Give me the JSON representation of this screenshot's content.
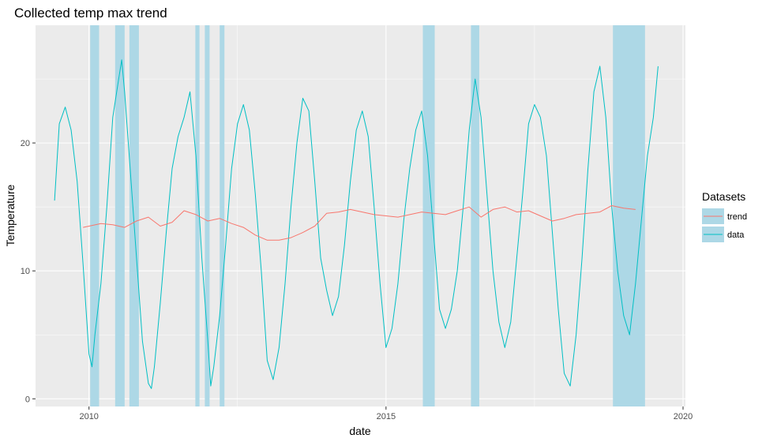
{
  "chart_data": {
    "type": "line",
    "title": "Collected temp max trend",
    "xlabel": "date",
    "ylabel": "Temperature",
    "x_ticks": [
      2010,
      2015,
      2020
    ],
    "y_ticks": [
      0,
      10,
      20
    ],
    "xlim": [
      2009.1,
      2020.04
    ],
    "ylim": [
      -0.6,
      29.2
    ],
    "grid": true,
    "legend": {
      "title": "Datasets",
      "position": "right",
      "entries": [
        "trend",
        "data"
      ]
    },
    "colors": {
      "trend": "#F8766D",
      "data": "#00BFC4",
      "shade": "#ADD8E6",
      "panel": "#EBEBEB",
      "grid": "#FFFFFF"
    },
    "shaded_periods": [
      [
        2010.02,
        2010.17
      ],
      [
        2010.44,
        2010.6
      ],
      [
        2010.68,
        2010.84
      ],
      [
        2011.79,
        2011.86
      ],
      [
        2011.95,
        2012.03
      ],
      [
        2012.2,
        2012.28
      ],
      [
        2015.62,
        2015.82
      ],
      [
        2016.43,
        2016.57
      ],
      [
        2018.82,
        2019.36
      ]
    ],
    "series": [
      {
        "name": "trend",
        "x": [
          2009.9,
          2010.0,
          2010.2,
          2010.4,
          2010.6,
          2010.8,
          2011.0,
          2011.2,
          2011.4,
          2011.6,
          2011.8,
          2012.0,
          2012.2,
          2012.4,
          2012.6,
          2012.8,
          2013.0,
          2013.2,
          2013.4,
          2013.6,
          2013.8,
          2014.0,
          2014.2,
          2014.4,
          2014.6,
          2014.8,
          2015.0,
          2015.2,
          2015.4,
          2015.6,
          2015.8,
          2016.0,
          2016.2,
          2016.4,
          2016.6,
          2016.8,
          2017.0,
          2017.2,
          2017.4,
          2017.6,
          2017.8,
          2018.0,
          2018.2,
          2018.4,
          2018.6,
          2018.8,
          2019.0,
          2019.2
        ],
        "y": [
          13.4,
          13.5,
          13.7,
          13.6,
          13.4,
          13.9,
          14.2,
          13.5,
          13.8,
          14.7,
          14.4,
          13.9,
          14.1,
          13.7,
          13.4,
          12.8,
          12.4,
          12.4,
          12.6,
          13.0,
          13.5,
          14.5,
          14.6,
          14.8,
          14.6,
          14.4,
          14.3,
          14.2,
          14.4,
          14.6,
          14.5,
          14.4,
          14.7,
          15.0,
          14.2,
          14.8,
          15.0,
          14.6,
          14.7,
          14.3,
          13.9,
          14.1,
          14.4,
          14.5,
          14.6,
          15.1,
          14.9,
          14.8
        ]
      },
      {
        "name": "data",
        "x": [
          2009.42,
          2009.5,
          2009.6,
          2009.7,
          2009.8,
          2009.9,
          2010.0,
          2010.05,
          2010.1,
          2010.2,
          2010.3,
          2010.4,
          2010.5,
          2010.55,
          2010.6,
          2010.7,
          2010.8,
          2010.9,
          2011.0,
          2011.05,
          2011.1,
          2011.2,
          2011.3,
          2011.4,
          2011.5,
          2011.6,
          2011.7,
          2011.8,
          2011.9,
          2012.0,
          2012.05,
          2012.1,
          2012.2,
          2012.3,
          2012.4,
          2012.5,
          2012.6,
          2012.7,
          2012.8,
          2012.9,
          2013.0,
          2013.1,
          2013.2,
          2013.3,
          2013.4,
          2013.5,
          2013.6,
          2013.7,
          2013.8,
          2013.9,
          2014.0,
          2014.1,
          2014.2,
          2014.3,
          2014.4,
          2014.5,
          2014.6,
          2014.7,
          2014.8,
          2014.9,
          2015.0,
          2015.1,
          2015.2,
          2015.3,
          2015.4,
          2015.5,
          2015.6,
          2015.7,
          2015.8,
          2015.9,
          2016.0,
          2016.1,
          2016.2,
          2016.3,
          2016.4,
          2016.5,
          2016.6,
          2016.7,
          2016.8,
          2016.9,
          2017.0,
          2017.1,
          2017.2,
          2017.3,
          2017.4,
          2017.5,
          2017.6,
          2017.7,
          2017.8,
          2017.9,
          2018.0,
          2018.1,
          2018.2,
          2018.3,
          2018.4,
          2018.5,
          2018.6,
          2018.7,
          2018.8,
          2018.9,
          2019.0,
          2019.1,
          2019.2,
          2019.3,
          2019.4,
          2019.5,
          2019.58
        ],
        "y": [
          15.5,
          21.5,
          22.8,
          21.0,
          17.0,
          10.5,
          3.5,
          2.5,
          5.0,
          9.0,
          15.0,
          22.0,
          25.0,
          26.5,
          24.0,
          17.5,
          11.0,
          4.5,
          1.2,
          0.8,
          2.5,
          7.5,
          13.0,
          18.0,
          20.5,
          22.0,
          24.0,
          19.0,
          11.0,
          4.5,
          1.0,
          2.5,
          6.5,
          12.0,
          18.0,
          21.5,
          23.0,
          21.0,
          16.0,
          10.0,
          3.0,
          1.5,
          4.0,
          9.0,
          15.0,
          20.0,
          23.5,
          22.5,
          17.0,
          11.0,
          8.5,
          6.5,
          8.0,
          12.0,
          17.0,
          21.0,
          22.5,
          20.5,
          15.0,
          9.0,
          4.0,
          5.5,
          9.0,
          14.0,
          18.0,
          21.0,
          22.5,
          19.0,
          13.0,
          7.0,
          5.5,
          7.0,
          10.0,
          15.0,
          21.0,
          25.0,
          22.0,
          16.0,
          10.0,
          6.0,
          4.0,
          6.0,
          11.0,
          16.0,
          21.5,
          23.0,
          22.0,
          19.0,
          13.0,
          7.0,
          2.0,
          1.0,
          5.0,
          11.0,
          18.0,
          24.0,
          26.0,
          22.0,
          15.0,
          10.0,
          6.5,
          5.0,
          9.0,
          14.0,
          19.0,
          22.0,
          26.0
        ]
      }
    ]
  }
}
